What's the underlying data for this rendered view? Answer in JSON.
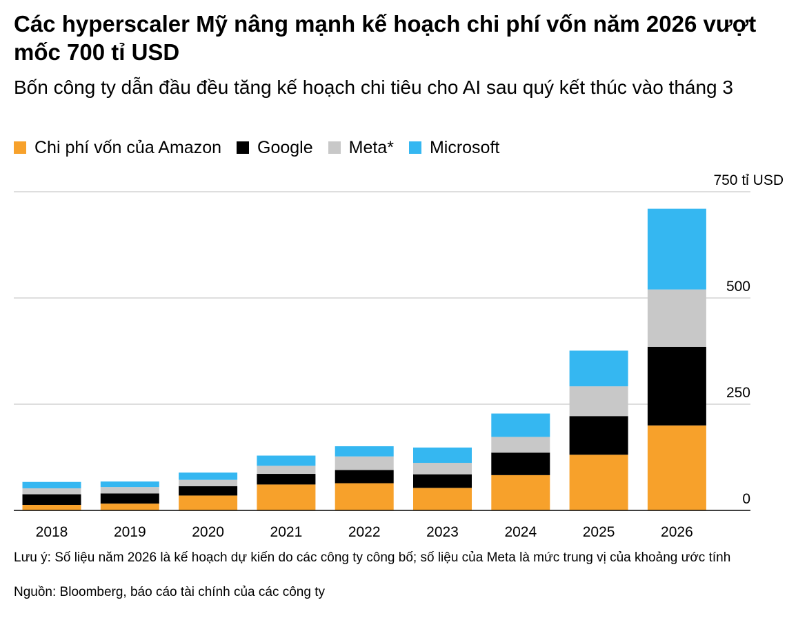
{
  "title": "Các hyperscaler Mỹ nâng mạnh kế hoạch chi phí vốn năm 2026 vượt mốc 700 tỉ USD",
  "subtitle": "Bốn công ty dẫn đầu đều tăng kế hoạch chi tiêu cho AI sau quý kết thúc vào tháng 3",
  "note": "Lưu ý: Số liệu năm 2026 là kế hoạch dự kiến do các công ty công bố; số liệu của Meta là mức trung vị của khoảng ước tính",
  "source": "Nguồn: Bloomberg, báo cáo tài chính của các công ty",
  "chart_data": {
    "type": "bar",
    "stacked": true,
    "categories": [
      "2018",
      "2019",
      "2020",
      "2021",
      "2022",
      "2023",
      "2024",
      "2025",
      "2026"
    ],
    "series": [
      {
        "name": "Chi phí vốn của Amazon",
        "color": "#f7a12b",
        "values": [
          13,
          16,
          35,
          61,
          64,
          53,
          83,
          131,
          200
        ]
      },
      {
        "name": "Google",
        "color": "#000000",
        "values": [
          25,
          24,
          22,
          25,
          31,
          32,
          53,
          91,
          185
        ]
      },
      {
        "name": "Meta*",
        "color": "#c8c8c8",
        "values": [
          14,
          15,
          15,
          19,
          32,
          27,
          37,
          70,
          135
        ]
      },
      {
        "name": "Microsoft",
        "color": "#35b7f1",
        "values": [
          15,
          13,
          17,
          24,
          24,
          36,
          55,
          84,
          190
        ]
      }
    ],
    "ylim": [
      0,
      750
    ],
    "yticks": [
      {
        "value": 0,
        "label": "0"
      },
      {
        "value": 250,
        "label": "250"
      },
      {
        "value": 500,
        "label": "500"
      },
      {
        "value": 750,
        "label": "750 tỉ USD"
      }
    ],
    "grid": true,
    "y_axis_position": "right",
    "legend_position": "top-left"
  }
}
